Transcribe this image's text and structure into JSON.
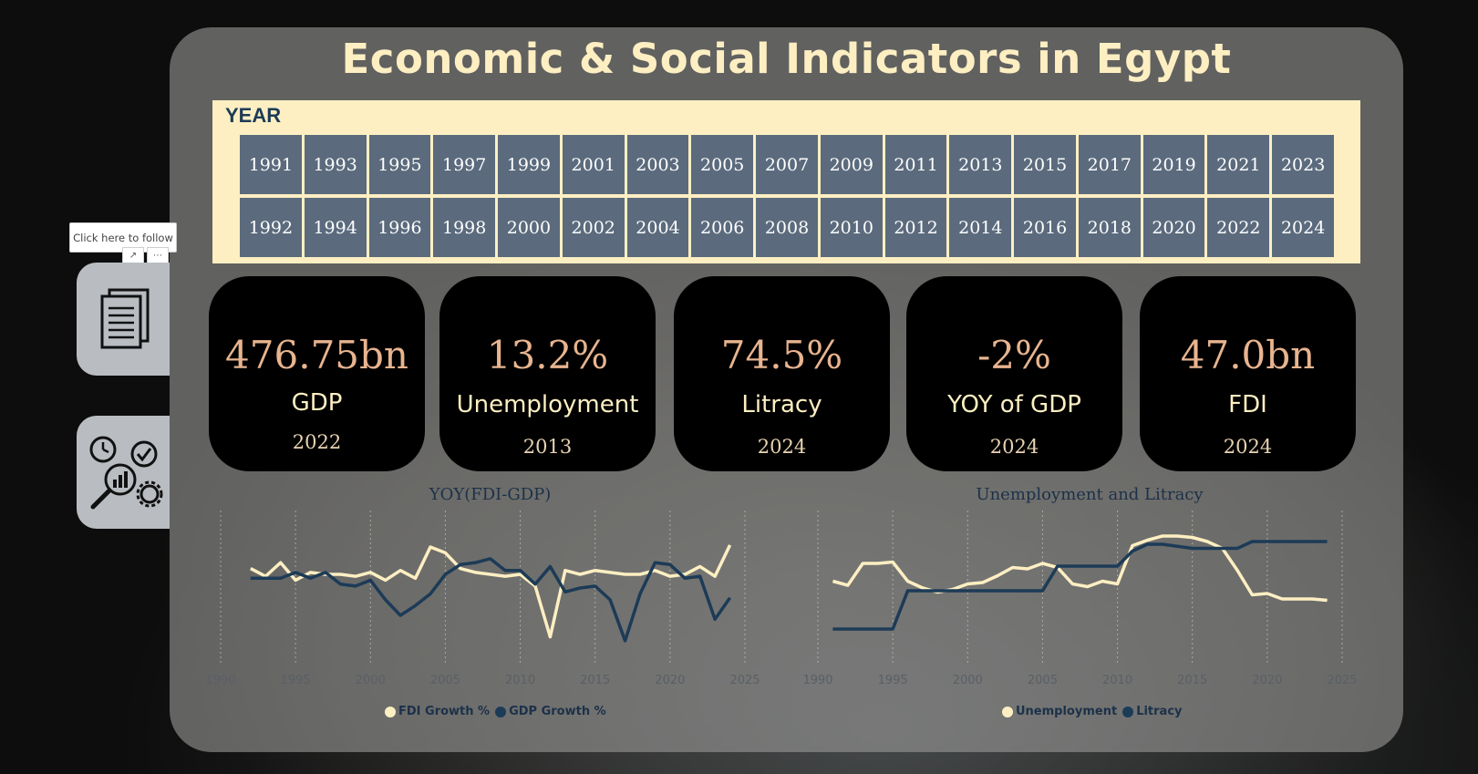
{
  "title": "Economic & Social Indicators in Egypt",
  "year_slicer": {
    "label": "YEAR",
    "row1": [
      "1991",
      "1993",
      "1995",
      "1997",
      "1999",
      "2001",
      "2003",
      "2005",
      "2007",
      "2009",
      "2011",
      "2013",
      "2015",
      "2017",
      "2019",
      "2021",
      "2023"
    ],
    "row2": [
      "1992",
      "1994",
      "1996",
      "1998",
      "2000",
      "2002",
      "2004",
      "2006",
      "2008",
      "2010",
      "2012",
      "2014",
      "2016",
      "2018",
      "2020",
      "2022",
      "2024"
    ]
  },
  "tooltip": "Click here to follow",
  "kpis": [
    {
      "value": "476.75bn",
      "label": "GDP",
      "year": "2022"
    },
    {
      "value": "13.2%",
      "label": "Unemployment",
      "year": "2013"
    },
    {
      "value": "74.5%",
      "label": "Litracy",
      "year": "2024"
    },
    {
      "value": "-2%",
      "label": "YOY of GDP",
      "year": "2024"
    },
    {
      "value": "47.0bn",
      "label": "FDI",
      "year": "2024"
    }
  ],
  "colors": {
    "cream": "#fdefc2",
    "navy": "#1c3b57",
    "slate": "#5b6b7d",
    "peach": "#e8b48f"
  },
  "side_icons": [
    "documents-icon",
    "analytics-settings-icon"
  ],
  "chart_data": [
    {
      "type": "line",
      "title": "YOY(FDI-GDP)",
      "x_ticks": [
        "1990",
        "1995",
        "2000",
        "2005",
        "2010",
        "2015",
        "2020",
        "2025"
      ],
      "xlim": [
        1990,
        2025
      ],
      "ylim": [
        -4,
        3
      ],
      "grid": "vertical dotted",
      "legend_placement": "bottom",
      "x": [
        1992,
        1993,
        1994,
        1995,
        1996,
        1997,
        1998,
        1999,
        2000,
        2001,
        2002,
        2003,
        2004,
        2005,
        2006,
        2007,
        2008,
        2009,
        2010,
        2011,
        2012,
        2013,
        2014,
        2015,
        2016,
        2017,
        2018,
        2019,
        2020,
        2021,
        2022,
        2023,
        2024
      ],
      "series": [
        {
          "name": "FDI Growth %",
          "color": "#fdefc2",
          "values": [
            0.5,
            0.1,
            0.8,
            -0.1,
            0.3,
            0.2,
            0.2,
            0.1,
            0.3,
            -0.1,
            0.4,
            0.0,
            1.6,
            1.3,
            0.5,
            0.3,
            0.2,
            0.1,
            0.2,
            -0.4,
            -3.0,
            0.4,
            0.2,
            0.4,
            0.3,
            0.2,
            0.2,
            0.4,
            0.1,
            0.2,
            0.6,
            0.1,
            1.7
          ]
        },
        {
          "name": "GDP Growth %",
          "color": "#1c3b57",
          "values": [
            0.0,
            0.0,
            0.0,
            0.3,
            0.0,
            0.3,
            -0.3,
            -0.4,
            -0.1,
            -1.1,
            -1.9,
            -1.4,
            -0.8,
            0.2,
            0.7,
            0.8,
            1.0,
            0.4,
            0.4,
            -0.3,
            0.6,
            -0.7,
            -0.5,
            -0.4,
            -1.1,
            -3.2,
            -0.8,
            0.8,
            0.7,
            0.0,
            0.1,
            -2.1,
            -1.0
          ]
        }
      ]
    },
    {
      "type": "line",
      "title": "Unemployment and Litracy",
      "x_ticks": [
        "1990",
        "1995",
        "2000",
        "2005",
        "2010",
        "2015",
        "2020",
        "2025"
      ],
      "xlim": [
        1990,
        2025
      ],
      "ylim": [
        0,
        10
      ],
      "grid": "vertical dotted",
      "legend_placement": "bottom",
      "series": [
        {
          "name": "Unemployment",
          "color": "#fdefc2",
          "x": [
            1991,
            1992,
            1993,
            1994,
            1995,
            1996,
            1997,
            1998,
            1999,
            2000,
            2001,
            2002,
            2003,
            2004,
            2005,
            2006,
            2007,
            2008,
            2009,
            2010,
            2011,
            2012,
            2013,
            2014,
            2015,
            2016,
            2017,
            2018,
            2019,
            2020,
            2021,
            2022,
            2023,
            2024
          ],
          "values": [
            5.5,
            5.2,
            6.8,
            6.8,
            6.9,
            5.5,
            5.0,
            4.7,
            4.9,
            5.3,
            5.4,
            5.9,
            6.5,
            6.4,
            6.8,
            6.5,
            5.3,
            5.1,
            5.5,
            5.3,
            8.1,
            8.5,
            8.8,
            8.8,
            8.7,
            8.4,
            7.9,
            6.3,
            4.5,
            4.6,
            4.2,
            4.2,
            4.2,
            4.1
          ]
        },
        {
          "name": "Litracy",
          "color": "#1c3b57",
          "x": [
            1991,
            1995,
            1996,
            2000,
            2001,
            2005,
            2006,
            2010,
            2011,
            2012,
            2013,
            2015,
            2018,
            2019,
            2024
          ],
          "values": [
            2.0,
            2.0,
            4.8,
            4.8,
            4.8,
            4.8,
            6.6,
            6.6,
            7.7,
            8.2,
            8.2,
            7.9,
            7.9,
            8.4,
            8.4
          ]
        }
      ]
    }
  ]
}
